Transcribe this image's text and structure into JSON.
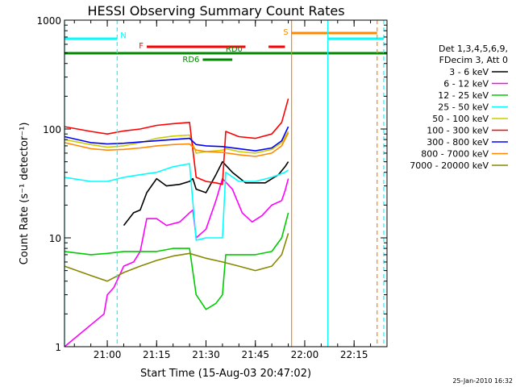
{
  "chart_data": {
    "type": "line",
    "title": "HESSI Observing Summary Count Rates",
    "xlabel": "Start Time (15-Aug-03 20:47:02)",
    "ylabel": "Count Rate (s⁻¹ detector⁻¹)",
    "x_range": [
      "20:47",
      "22:25"
    ],
    "ylim": [
      1,
      1000
    ],
    "y_scale": "log",
    "x_ticks": [
      "21:00",
      "21:15",
      "21:30",
      "21:45",
      "22:00",
      "22:15"
    ],
    "y_ticks": [
      "1",
      "10",
      "100",
      "1000"
    ],
    "grid": false,
    "legend_position": "right",
    "legend_header": [
      "Det 1,3,4,5,6,9,",
      "FDecim 3, Att 0"
    ],
    "footer_timestamp": "25-Jan-2010 16:32",
    "flags": [
      {
        "label": "N",
        "color": "#00ffff",
        "start": "20:47",
        "end": "21:03"
      },
      {
        "label": "N",
        "color": "#00ffff",
        "start": "22:07",
        "end": "22:24"
      },
      {
        "label": "F",
        "color": "#ff0000",
        "start": "21:12",
        "end": "21:42"
      },
      {
        "label": "F",
        "color": "#ff0000",
        "start": "21:49",
        "end": "21:54"
      },
      {
        "label": "S",
        "color": "#ff8800",
        "start": "21:56",
        "end": "22:22"
      },
      {
        "label": "RD0",
        "color": "#008800",
        "start": "20:47",
        "end": "22:25"
      },
      {
        "label": "RD6",
        "color": "#008800",
        "start": "21:29",
        "end": "21:38"
      }
    ],
    "vertical_markers": [
      {
        "time": "20:47",
        "color": "#00ffff",
        "style": "solid"
      },
      {
        "time": "21:03",
        "color": "#00ffff",
        "style": "dashed"
      },
      {
        "time": "21:56",
        "color": "#ff8800",
        "style": "solid"
      },
      {
        "time": "22:07",
        "color": "#00ffff",
        "style": "solid"
      },
      {
        "time": "22:22",
        "color": "#ff8800",
        "style": "dashed"
      },
      {
        "time": "22:24",
        "color": "#00ffff",
        "style": "dashed"
      }
    ],
    "series": [
      {
        "name": "3 - 6 keV",
        "color": "#000000",
        "points": [
          [
            "21:05",
            13
          ],
          [
            "21:08",
            17
          ],
          [
            "21:10",
            18
          ],
          [
            "21:12",
            26
          ],
          [
            "21:15",
            35
          ],
          [
            "21:18",
            30
          ],
          [
            "21:22",
            31
          ],
          [
            "21:25",
            33
          ],
          [
            "21:26",
            35
          ],
          [
            "21:27",
            28
          ],
          [
            "21:30",
            26
          ],
          [
            "21:33",
            38
          ],
          [
            "21:35",
            50
          ],
          [
            "21:38",
            40
          ],
          [
            "21:42",
            32
          ],
          [
            "21:48",
            32
          ],
          [
            "21:52",
            38
          ],
          [
            "21:54",
            45
          ],
          [
            "21:55",
            50
          ]
        ]
      },
      {
        "name": "6 - 12 keV",
        "color": "#ff00ff",
        "points": [
          [
            "20:47",
            1
          ],
          [
            "20:59",
            2
          ],
          [
            "21:00",
            3
          ],
          [
            "21:02",
            3.5
          ],
          [
            "21:05",
            5.5
          ],
          [
            "21:08",
            6
          ],
          [
            "21:10",
            7.5
          ],
          [
            "21:12",
            15
          ],
          [
            "21:15",
            15
          ],
          [
            "21:18",
            13
          ],
          [
            "21:22",
            14
          ],
          [
            "21:25",
            17
          ],
          [
            "21:26",
            18
          ],
          [
            "21:27",
            10
          ],
          [
            "21:30",
            12
          ],
          [
            "21:33",
            22
          ],
          [
            "21:35",
            35
          ],
          [
            "21:38",
            28
          ],
          [
            "21:41",
            17
          ],
          [
            "21:44",
            14
          ],
          [
            "21:47",
            16
          ],
          [
            "21:50",
            20
          ],
          [
            "21:53",
            22
          ],
          [
            "21:54",
            27
          ],
          [
            "21:55",
            35
          ]
        ]
      },
      {
        "name": "12 - 25 keV",
        "color": "#00cc00",
        "points": [
          [
            "20:47",
            7.5
          ],
          [
            "20:55",
            7
          ],
          [
            "21:00",
            7.2
          ],
          [
            "21:05",
            7.5
          ],
          [
            "21:10",
            7.5
          ],
          [
            "21:15",
            7.5
          ],
          [
            "21:20",
            8
          ],
          [
            "21:25",
            8
          ],
          [
            "21:27",
            3
          ],
          [
            "21:30",
            2.2
          ],
          [
            "21:33",
            2.5
          ],
          [
            "21:35",
            3
          ],
          [
            "21:36",
            7
          ],
          [
            "21:40",
            7
          ],
          [
            "21:45",
            7
          ],
          [
            "21:50",
            7.5
          ],
          [
            "21:53",
            10
          ],
          [
            "21:55",
            17
          ]
        ]
      },
      {
        "name": "25 - 50 keV",
        "color": "#00ffff",
        "points": [
          [
            "20:47",
            36
          ],
          [
            "20:55",
            33
          ],
          [
            "21:00",
            33
          ],
          [
            "21:05",
            36
          ],
          [
            "21:10",
            38
          ],
          [
            "21:15",
            40
          ],
          [
            "21:20",
            45
          ],
          [
            "21:25",
            48
          ],
          [
            "21:27",
            9.5
          ],
          [
            "21:30",
            10
          ],
          [
            "21:33",
            10
          ],
          [
            "21:35",
            10
          ],
          [
            "21:36",
            40
          ],
          [
            "21:40",
            33
          ],
          [
            "21:45",
            33
          ],
          [
            "21:50",
            36
          ],
          [
            "21:54",
            40
          ],
          [
            "21:55",
            42
          ]
        ]
      },
      {
        "name": "50 - 100 keV",
        "color": "#cccc00",
        "points": [
          [
            "20:47",
            80
          ],
          [
            "20:55",
            72
          ],
          [
            "21:00",
            68
          ],
          [
            "21:05",
            70
          ],
          [
            "21:10",
            75
          ],
          [
            "21:15",
            82
          ],
          [
            "21:20",
            86
          ],
          [
            "21:25",
            88
          ],
          [
            "21:27",
            60
          ],
          [
            "21:30",
            62
          ],
          [
            "21:33",
            63
          ],
          [
            "21:35",
            64
          ],
          [
            "21:36",
            66
          ],
          [
            "21:40",
            62
          ],
          [
            "21:45",
            60
          ],
          [
            "21:50",
            65
          ],
          [
            "21:53",
            75
          ],
          [
            "21:55",
            95
          ]
        ]
      },
      {
        "name": "100 - 300 keV",
        "color": "#ff0000",
        "points": [
          [
            "20:47",
            105
          ],
          [
            "20:55",
            95
          ],
          [
            "21:00",
            90
          ],
          [
            "21:05",
            96
          ],
          [
            "21:10",
            100
          ],
          [
            "21:15",
            108
          ],
          [
            "21:20",
            112
          ],
          [
            "21:25",
            115
          ],
          [
            "21:27",
            36
          ],
          [
            "21:30",
            33
          ],
          [
            "21:33",
            32
          ],
          [
            "21:35",
            31
          ],
          [
            "21:36",
            95
          ],
          [
            "21:40",
            85
          ],
          [
            "21:45",
            82
          ],
          [
            "21:50",
            90
          ],
          [
            "21:53",
            115
          ],
          [
            "21:55",
            190
          ]
        ]
      },
      {
        "name": "300 - 800 keV",
        "color": "#0000ff",
        "points": [
          [
            "20:47",
            85
          ],
          [
            "20:55",
            75
          ],
          [
            "21:00",
            73
          ],
          [
            "21:05",
            74
          ],
          [
            "21:10",
            76
          ],
          [
            "21:15",
            78
          ],
          [
            "21:20",
            80
          ],
          [
            "21:25",
            82
          ],
          [
            "21:27",
            72
          ],
          [
            "21:30",
            70
          ],
          [
            "21:35",
            69
          ],
          [
            "21:40",
            66
          ],
          [
            "21:45",
            63
          ],
          [
            "21:50",
            67
          ],
          [
            "21:53",
            78
          ],
          [
            "21:55",
            105
          ]
        ]
      },
      {
        "name": "800 - 7000 keV",
        "color": "#ff8800",
        "points": [
          [
            "20:47",
            75
          ],
          [
            "20:55",
            66
          ],
          [
            "21:00",
            64
          ],
          [
            "21:05",
            65
          ],
          [
            "21:10",
            67
          ],
          [
            "21:15",
            70
          ],
          [
            "21:20",
            72
          ],
          [
            "21:25",
            73
          ],
          [
            "21:27",
            64
          ],
          [
            "21:30",
            62
          ],
          [
            "21:35",
            61
          ],
          [
            "21:40",
            58
          ],
          [
            "21:45",
            56
          ],
          [
            "21:50",
            60
          ],
          [
            "21:53",
            70
          ],
          [
            "21:55",
            92
          ]
        ]
      },
      {
        "name": "7000 - 20000 keV",
        "color": "#888800",
        "points": [
          [
            "20:47",
            5.5
          ],
          [
            "20:55",
            4.5
          ],
          [
            "21:00",
            4
          ],
          [
            "21:05",
            4.8
          ],
          [
            "21:10",
            5.5
          ],
          [
            "21:15",
            6.2
          ],
          [
            "21:20",
            6.8
          ],
          [
            "21:25",
            7.2
          ],
          [
            "21:30",
            6.5
          ],
          [
            "21:35",
            6
          ],
          [
            "21:40",
            5.5
          ],
          [
            "21:45",
            5
          ],
          [
            "21:50",
            5.5
          ],
          [
            "21:53",
            7
          ],
          [
            "21:55",
            11
          ]
        ]
      }
    ]
  }
}
